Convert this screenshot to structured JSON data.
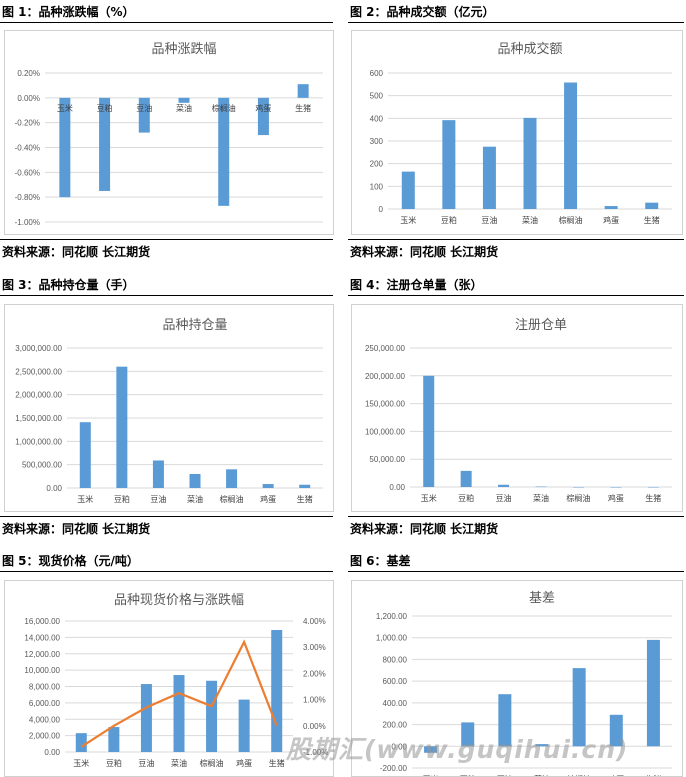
{
  "figures": [
    {
      "label": "图 1：品种涨跌幅（%）",
      "source": "资料来源：同花顺 长江期货"
    },
    {
      "label": "图 2：品种成交额（亿元）",
      "source": "资料来源：同花顺 长江期货"
    },
    {
      "label": "图 3：品种持仓量（手）",
      "source": "资料来源：同花顺 长江期货"
    },
    {
      "label": "图 4：注册仓单量（张）",
      "source": "资料来源：同花顺 长江期货"
    },
    {
      "label": "图 5：现货价格（元/吨）",
      "source": ""
    },
    {
      "label": "图 6：基差",
      "source": ""
    }
  ],
  "watermark": "股期汇(www.guqihui.cn)",
  "colors": {
    "bar": "#5b9bd5",
    "line": "#ed7d31",
    "grid": "#d9d9d9",
    "axis_text": "#595959"
  },
  "chart_data": [
    {
      "type": "bar",
      "title": "品种涨跌幅",
      "categories": [
        "玉米",
        "豆粕",
        "豆油",
        "菜油",
        "棕榈油",
        "鸡蛋",
        "生猪"
      ],
      "values": [
        -0.008,
        -0.0075,
        -0.0028,
        -0.0004,
        -0.0087,
        -0.003,
        0.0011
      ],
      "ylim": [
        -0.01,
        0.002
      ],
      "yticks": [
        0.002,
        0.0,
        -0.002,
        -0.004,
        -0.006,
        -0.008,
        -0.01
      ],
      "ytick_labels": [
        "0.20%",
        "0.00%",
        "-0.20%",
        "-0.40%",
        "-0.60%",
        "-0.80%",
        "-1.00%"
      ],
      "category_labels_at_zero": true,
      "grid": true
    },
    {
      "type": "bar",
      "title": "品种成交额",
      "categories": [
        "玉米",
        "豆粕",
        "豆油",
        "菜油",
        "棕榈油",
        "鸡蛋",
        "生猪"
      ],
      "values": [
        165,
        392,
        275,
        402,
        558,
        13,
        28
      ],
      "ylim": [
        0,
        600
      ],
      "yticks": [
        600,
        500,
        400,
        300,
        200,
        100,
        0
      ],
      "ytick_labels": [
        "600",
        "500",
        "400",
        "300",
        "200",
        "100",
        "0"
      ],
      "grid": true
    },
    {
      "type": "bar",
      "title": "品种持仓量",
      "categories": [
        "玉米",
        "豆粕",
        "豆油",
        "菜油",
        "棕榈油",
        "鸡蛋",
        "生猪"
      ],
      "values": [
        1410000,
        2600000,
        590000,
        300000,
        400000,
        85000,
        70000
      ],
      "ylim": [
        0,
        3000000
      ],
      "yticks": [
        3000000,
        2500000,
        2000000,
        1500000,
        1000000,
        500000,
        0
      ],
      "ytick_labels": [
        "3,000,000.00",
        "2,500,000.00",
        "2,000,000.00",
        "1,500,000.00",
        "1,000,000.00",
        "500,000.00",
        "0.00"
      ],
      "grid": true
    },
    {
      "type": "bar",
      "title": "注册仓单",
      "categories": [
        "玉米",
        "豆粕",
        "豆油",
        "菜油",
        "棕榈油",
        "鸡蛋",
        "生猪"
      ],
      "values": [
        200000,
        29000,
        4000,
        800,
        0,
        0,
        0
      ],
      "ylim": [
        0,
        250000
      ],
      "yticks": [
        250000,
        200000,
        150000,
        100000,
        50000,
        0
      ],
      "ytick_labels": [
        "250,000.00",
        "200,000.00",
        "150,000.00",
        "100,000.00",
        "50,000.00",
        "0.00"
      ],
      "grid": true
    },
    {
      "type": "bar",
      "title": "品种现货价格与涨跌幅",
      "categories": [
        "玉米",
        "豆粕",
        "豆油",
        "菜油",
        "棕榈油",
        "鸡蛋",
        "生猪"
      ],
      "series": [
        {
          "values": [
            2300,
            3050,
            8300,
            9400,
            8700,
            6400,
            14900
          ],
          "axis": "left",
          "kind": "bar"
        },
        {
          "values": [
            -0.008,
            0.0,
            0.007,
            0.0125,
            0.0075,
            0.032,
            0.0
          ],
          "axis": "right",
          "kind": "line"
        }
      ],
      "ylim": [
        0,
        16000
      ],
      "yticks": [
        16000,
        14000,
        12000,
        10000,
        8000,
        6000,
        4000,
        2000,
        0
      ],
      "ytick_labels": [
        "16,000.00",
        "14,000.00",
        "12,000.00",
        "10,000.00",
        "8,000.00",
        "6,000.00",
        "4,000.00",
        "2,000.00",
        "0.00"
      ],
      "y2lim": [
        -0.01,
        0.04
      ],
      "y2ticks": [
        0.04,
        0.03,
        0.02,
        0.01,
        0.0,
        -0.01
      ],
      "y2tick_labels": [
        "4.00%",
        "3.00%",
        "2.00%",
        "1.00%",
        "0.00%",
        "-1.00%"
      ],
      "grid": true
    },
    {
      "type": "bar",
      "title": "基差",
      "categories": [
        "玉米",
        "豆粕",
        "豆油",
        "菜油",
        "棕榈油",
        "鸡蛋",
        "生猪"
      ],
      "values": [
        -60,
        220,
        480,
        20,
        720,
        290,
        980
      ],
      "ylim": [
        -200,
        1200
      ],
      "yticks": [
        1200,
        1000,
        800,
        600,
        400,
        200,
        0,
        -200
      ],
      "ytick_labels": [
        "1,200.00",
        "1,000.00",
        "800.00",
        "600.00",
        "400.00",
        "200.00",
        "0.00",
        "-200.00"
      ],
      "grid": true
    }
  ]
}
